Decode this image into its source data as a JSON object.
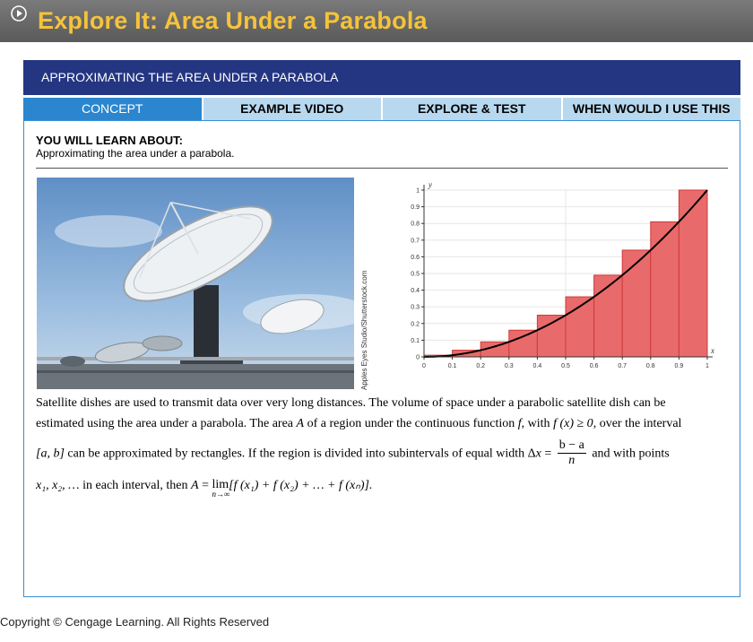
{
  "app": {
    "title": "Explore It: Area Under a Parabola"
  },
  "header": {
    "title": "APPROXIMATING THE AREA UNDER A PARABOLA"
  },
  "tabs": [
    {
      "label": "CONCEPT",
      "active": true
    },
    {
      "label": "EXAMPLE VIDEO",
      "active": false
    },
    {
      "label": "EXPLORE & TEST",
      "active": false
    },
    {
      "label": "WHEN WOULD I USE THIS",
      "active": false
    }
  ],
  "learn": {
    "heading": "YOU WILL LEARN ABOUT:",
    "text": "Approximating the area under a parabola."
  },
  "photo": {
    "credit": "Apples Eyes Studio/Shutterstock.com"
  },
  "chart_data": {
    "type": "bar",
    "xlabel": "x",
    "ylabel": "y",
    "xlim": [
      0,
      1
    ],
    "ylim": [
      0,
      1
    ],
    "x_ticks": [
      "0",
      "0.1",
      "0.2",
      "0.3",
      "0.4",
      "0.5",
      "0.6",
      "0.7",
      "0.8",
      "0.9",
      "1"
    ],
    "y_ticks": [
      "0",
      "0.1",
      "0.2",
      "0.3",
      "0.4",
      "0.5",
      "0.6",
      "0.7",
      "0.8",
      "0.9",
      "1"
    ],
    "rectangles": [
      {
        "x0": 0.0,
        "x1": 0.1,
        "height": 0.01
      },
      {
        "x0": 0.1,
        "x1": 0.2,
        "height": 0.04
      },
      {
        "x0": 0.2,
        "x1": 0.3,
        "height": 0.09
      },
      {
        "x0": 0.3,
        "x1": 0.4,
        "height": 0.16
      },
      {
        "x0": 0.4,
        "x1": 0.5,
        "height": 0.25
      },
      {
        "x0": 0.5,
        "x1": 0.6,
        "height": 0.36
      },
      {
        "x0": 0.6,
        "x1": 0.7,
        "height": 0.49
      },
      {
        "x0": 0.7,
        "x1": 0.8,
        "height": 0.64
      },
      {
        "x0": 0.8,
        "x1": 0.9,
        "height": 0.81
      },
      {
        "x0": 0.9,
        "x1": 1.0,
        "height": 1.0
      }
    ],
    "curve": "x^2",
    "colors": {
      "bar": "#e96a6a",
      "bar_edge": "#d03a3a",
      "curve": "#000000"
    }
  },
  "body": {
    "line1": "Satellite dishes are used to transmit data over very long distances. The volume of space under a parabolic satellite dish can be",
    "line2_a": "estimated using the area under a parabola. The area ",
    "line2_A": "A",
    "line2_b": " of a region under the continuous function ",
    "line2_f": "f",
    "line2_c": ", with ",
    "line2_cond": "f (x) ≥ 0",
    "line2_d": ", over the interval",
    "line3_interval": "[a, b]",
    "line3_a": " can be approximated by rectangles. If the region is divided into subintervals of equal width Δ",
    "line3_x": "x",
    "line3_eq": " = ",
    "frac_num": "b − a",
    "frac_den": "n",
    "line3_b": " and with points",
    "line4_points": "x₁, x₂, …",
    "line4_a": " in each interval, then ",
    "line4_A": "A",
    "line4_eq": " = ",
    "lim_word": "lim",
    "lim_sub": "n→∞",
    "line4_sum": "[f (x₁) + f (x₂) + … + f (xₙ)]."
  },
  "footer": {
    "copyright": "Copyright © Cengage Learning. All Rights Reserved"
  }
}
